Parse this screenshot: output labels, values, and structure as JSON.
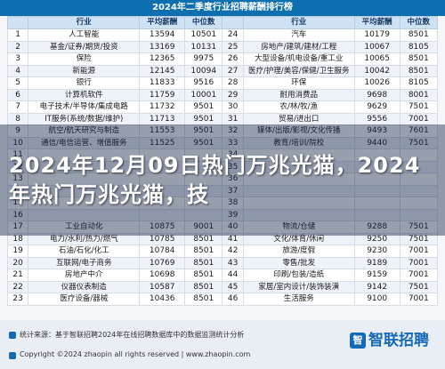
{
  "title": "2024年二季度行业招聘薪酬排行榜",
  "headers": [
    "行业",
    "平均薪酬",
    "中位数",
    "行业",
    "平均薪酬",
    "中位数"
  ],
  "rows": [
    [
      "1",
      "人工智能",
      "13594",
      "10501",
      "汽车",
      "10179",
      "8501"
    ],
    [
      "2",
      "基金/证券/期货/投资",
      "13169",
      "10131",
      "房地产/建筑/建材/工程",
      "10067",
      "8105"
    ],
    [
      "3",
      "保险",
      "12365",
      "9975",
      "大型设备/机电设备/重工业",
      "10065",
      "8501"
    ],
    [
      "4",
      "新能源",
      "12145",
      "10094",
      "医疗/护理/美容/保健/卫生服务",
      "10042",
      "8501"
    ],
    [
      "5",
      "银行",
      "11833",
      "9516",
      "环保",
      "10026",
      "8105"
    ],
    [
      "6",
      "计算机软件",
      "11759",
      "10001",
      "耐用消费品",
      "9698",
      "8001"
    ],
    [
      "7",
      "电子技术/半导体/集成电路",
      "11732",
      "9501",
      "农/林/牧/渔",
      "9629",
      "7501"
    ],
    [
      "8",
      "IT服务(系统/数据/维护)",
      "11713",
      "9501",
      "贸易/进出口",
      "9556",
      "7001"
    ],
    [
      "9",
      "航空/航天研究与制造",
      "11553",
      "9501",
      "媒体/出版/影视/文化传播",
      "9493",
      "7601"
    ],
    [
      "10",
      "通信/电信运营、增值服务",
      "11525",
      "9501",
      "教育/培训/院校",
      "9440",
      "7501"
    ],
    [
      "11",
      "",
      "",
      "",
      "",
      "",
      ""
    ],
    [
      "12",
      "",
      "",
      "",
      "",
      "",
      ""
    ],
    [
      "13",
      "",
      "",
      "",
      "",
      "",
      ""
    ],
    [
      "14",
      "",
      "",
      "",
      "",
      "",
      ""
    ],
    [
      "15",
      "",
      "",
      "",
      "",
      "",
      ""
    ],
    [
      "16",
      "",
      "",
      "",
      "",
      "",
      ""
    ],
    [
      "17",
      "工业自动化",
      "10875",
      "9001",
      "物流/仓储",
      "9288",
      "7501"
    ],
    [
      "18",
      "电力/水利/热力/燃气",
      "10785",
      "8501",
      "文化/体育/休闲",
      "9250",
      "7501"
    ],
    [
      "19",
      "石油/石化/化工",
      "10784",
      "8501",
      "旅游/度假",
      "9230",
      "7001"
    ],
    [
      "20",
      "互联网/电子商务",
      "10769",
      "8501",
      "零售/批发",
      "9189",
      "7001"
    ],
    [
      "21",
      "房地产中介",
      "10698",
      "8501",
      "印刷/包装/造纸",
      "9159",
      "7001"
    ],
    [
      "22",
      "仪器仪表制造",
      "10587",
      "8501",
      "家居/室内设计/装饰装潢",
      "9142",
      "7501"
    ],
    [
      "23",
      "医疗设备/器械",
      "10436",
      "8501",
      "生活服务",
      "9100",
      "7001"
    ]
  ],
  "headline": "2024年12月09日热门万兆光猫，2024年热门万兆光猫，技",
  "footnote_source": "统计来源：基于智联招聘2024年在线招聘数据库中的数据监测统计分析",
  "footnote_copyright": "Copyright ©2024 zhaopin all rights reserved | www.zhaopin.com",
  "logo_text": "智联招聘",
  "logo_mark": "智",
  "colors": {
    "title_bg": "#0d6fb0",
    "header_bg": "#cfe2f3",
    "logo": "#1469b8"
  }
}
